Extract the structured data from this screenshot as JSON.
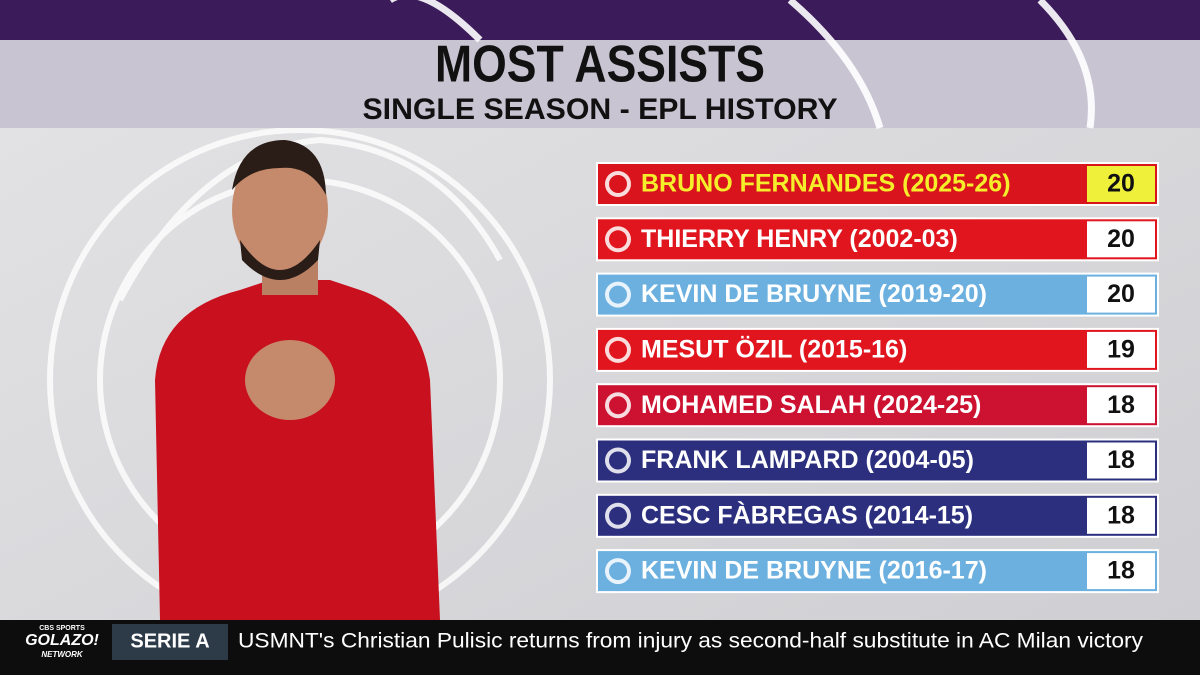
{
  "header": {
    "title": "MOST ASSISTS",
    "subtitle": "SINGLE SEASON - EPL HISTORY"
  },
  "table": {
    "rows": [
      {
        "name": "BRUNO FERNANDES (2025-26)",
        "value": "20",
        "color": "#d9141c",
        "highlight": true
      },
      {
        "name": "THIERRY HENRY (2002-03)",
        "value": "20",
        "color": "#e0151d"
      },
      {
        "name": "KEVIN DE BRUYNE (2019-20)",
        "value": "20",
        "color": "#6cb0e0"
      },
      {
        "name": "MESUT ÖZIL (2015-16)",
        "value": "19",
        "color": "#e0151d"
      },
      {
        "name": "MOHAMED SALAH (2024-25)",
        "value": "18",
        "color": "#cc1230"
      },
      {
        "name": "FRANK LAMPARD (2004-05)",
        "value": "18",
        "color": "#2b2f7e"
      },
      {
        "name": "CESC FÀBREGAS (2014-15)",
        "value": "18",
        "color": "#2b2f7e"
      },
      {
        "name": "KEVIN DE BRUYNE (2016-17)",
        "value": "18",
        "color": "#6cb0e0"
      }
    ]
  },
  "ticker": {
    "network_top": "CBS SPORTS",
    "network": "GOLAZO!",
    "network_sub": "NETWORK",
    "section": "SERIE A",
    "headline": "USMNT's Christian Pulisic returns from injury as second-half substitute in AC Milan victory"
  }
}
